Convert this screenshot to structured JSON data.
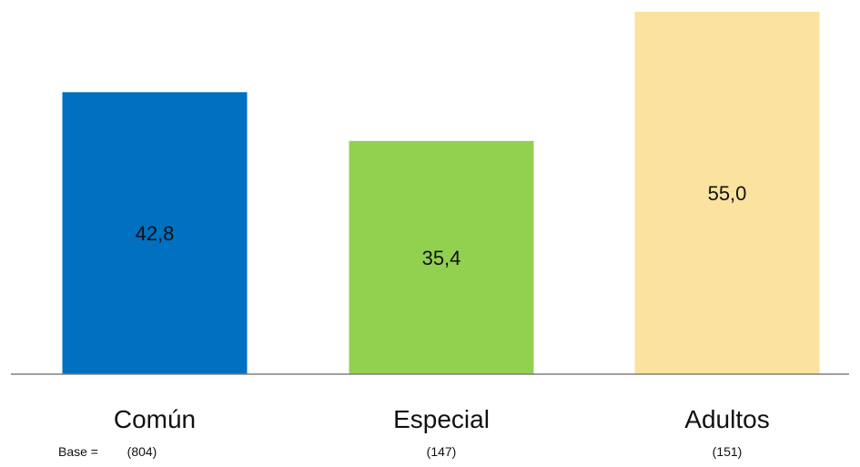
{
  "chart_data": {
    "type": "bar",
    "categories": [
      "Común",
      "Especial",
      "Adultos"
    ],
    "values": [
      42.8,
      35.4,
      55.0
    ],
    "value_labels": [
      "42,8",
      "35,4",
      "55,0"
    ],
    "colors": [
      "#0070C0",
      "#92D050",
      "#FBE29E"
    ],
    "base_prefix": "Base =",
    "bases": [
      "(804)",
      "(147)",
      "(151)"
    ],
    "ylim": [
      0,
      55.0
    ],
    "grid": false,
    "title": "",
    "xlabel": "",
    "ylabel": ""
  }
}
